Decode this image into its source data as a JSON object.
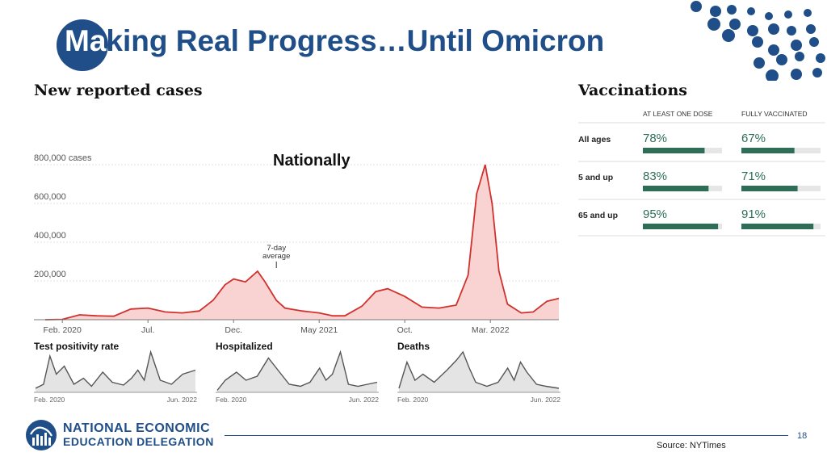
{
  "slide": {
    "title_highlight": "Ma",
    "title_rest": "king Real Progress…Until Omicron",
    "subtitle": "Nationally",
    "page_number": "18",
    "source": "Source: NYTimes",
    "logo_line1": "NATIONAL ECONOMIC",
    "logo_line2": "EDUCATION DELEGATION"
  },
  "colors": {
    "brand_blue": "#1f4e88",
    "case_red": "#d0312d",
    "case_fill": "#f8d3d2",
    "vacc_green": "#2e6e57",
    "small_gray": "#555555"
  },
  "chart_data": [
    {
      "type": "area",
      "title": "New reported cases",
      "annotation": [
        "7-day",
        "average"
      ],
      "y_ticks": [
        {
          "value": 800000,
          "label": "800,000 cases"
        },
        {
          "value": 600000,
          "label": "600,000"
        },
        {
          "value": 400000,
          "label": "400,000"
        },
        {
          "value": 200000,
          "label": "200,000"
        }
      ],
      "x_ticks": [
        {
          "index": 1,
          "label": "Feb. 2020"
        },
        {
          "index": 6,
          "label": "Jul."
        },
        {
          "index": 11,
          "label": "Dec."
        },
        {
          "index": 16,
          "label": "May 2021"
        },
        {
          "index": 21,
          "label": "Oct."
        },
        {
          "index": 26,
          "label": "Mar. 2022"
        }
      ],
      "ylim": [
        0,
        850000
      ],
      "xlim": [
        0,
        30
      ],
      "x": [
        0,
        1,
        2,
        3,
        4,
        5,
        6,
        7,
        8,
        9,
        9.8,
        10.5,
        11,
        11.7,
        12.4,
        12.8,
        13.5,
        14,
        15,
        16,
        16.8,
        17.5,
        18.5,
        19.3,
        20,
        21,
        22,
        23,
        24,
        24.7,
        25.2,
        25.7,
        26.1,
        26.5,
        27,
        27.8,
        28.5,
        29.3,
        30
      ],
      "y": [
        0,
        1500,
        25000,
        20000,
        18000,
        55000,
        60000,
        40000,
        35000,
        45000,
        100000,
        180000,
        210000,
        195000,
        250000,
        200000,
        100000,
        60000,
        45000,
        35000,
        20000,
        20000,
        70000,
        145000,
        160000,
        120000,
        65000,
        60000,
        75000,
        230000,
        650000,
        800000,
        600000,
        250000,
        80000,
        35000,
        40000,
        95000,
        110000
      ]
    },
    {
      "type": "area",
      "title": "Test positivity rate",
      "x_labels": [
        "Feb. 2020",
        "Jun. 2022"
      ],
      "ylim": [
        0,
        1
      ],
      "x": [
        0,
        0.05,
        0.09,
        0.13,
        0.18,
        0.24,
        0.3,
        0.35,
        0.42,
        0.48,
        0.55,
        0.6,
        0.64,
        0.68,
        0.72,
        0.78,
        0.85,
        0.92,
        1
      ],
      "y": [
        0.1,
        0.2,
        0.9,
        0.45,
        0.65,
        0.2,
        0.35,
        0.15,
        0.5,
        0.25,
        0.18,
        0.35,
        0.55,
        0.3,
        1.0,
        0.3,
        0.2,
        0.45,
        0.55
      ]
    },
    {
      "type": "area",
      "title": "Hospitalized",
      "x_labels": [
        "Feb. 2020",
        "Jun. 2022"
      ],
      "ylim": [
        0,
        1
      ],
      "x": [
        0,
        0.05,
        0.12,
        0.18,
        0.25,
        0.32,
        0.38,
        0.45,
        0.52,
        0.58,
        0.64,
        0.68,
        0.72,
        0.77,
        0.82,
        0.88,
        0.94,
        1
      ],
      "y": [
        0.05,
        0.3,
        0.5,
        0.3,
        0.4,
        0.85,
        0.55,
        0.2,
        0.15,
        0.25,
        0.6,
        0.3,
        0.45,
        1.0,
        0.2,
        0.15,
        0.2,
        0.25
      ]
    },
    {
      "type": "area",
      "title": "Deaths",
      "x_labels": [
        "Feb. 2020",
        "Jun. 2022"
      ],
      "ylim": [
        0,
        1
      ],
      "x": [
        0,
        0.05,
        0.1,
        0.15,
        0.22,
        0.3,
        0.36,
        0.4,
        0.44,
        0.48,
        0.55,
        0.62,
        0.68,
        0.72,
        0.76,
        0.8,
        0.86,
        0.92,
        1
      ],
      "y": [
        0.1,
        0.75,
        0.3,
        0.45,
        0.25,
        0.55,
        0.8,
        1.0,
        0.6,
        0.25,
        0.15,
        0.25,
        0.6,
        0.3,
        0.75,
        0.5,
        0.2,
        0.15,
        0.1
      ]
    },
    {
      "type": "bar",
      "title": "Vaccinations",
      "columns": [
        "AT LEAST ONE DOSE",
        "FULLY VACCINATED"
      ],
      "categories": [
        "All ages",
        "5 and up",
        "65 and up"
      ],
      "series": [
        {
          "name": "AT LEAST ONE DOSE",
          "values": [
            78,
            83,
            95
          ],
          "labels": [
            "78%",
            "83%",
            "95%"
          ]
        },
        {
          "name": "FULLY VACCINATED",
          "values": [
            67,
            71,
            91
          ],
          "labels": [
            "67%",
            "71%",
            "91%"
          ]
        }
      ],
      "ylim": [
        0,
        100
      ]
    }
  ]
}
